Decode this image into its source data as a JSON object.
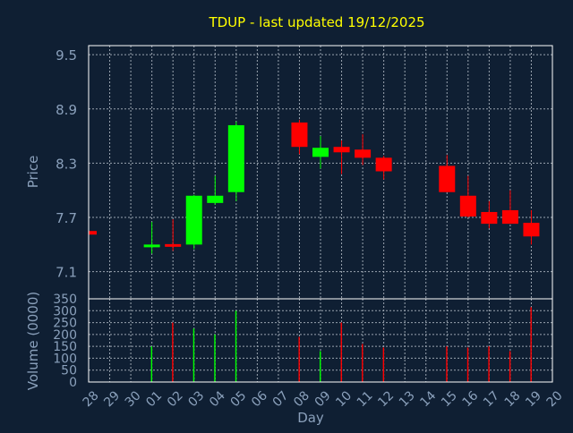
{
  "title": "TDUP - last updated 19/12/2025",
  "colors": {
    "background": "#0f1f33",
    "plot_border": "#ffffff",
    "grid": "#9aa4b0",
    "title": "#ffff00",
    "axis_text": "#8aa0bb",
    "up": "#00ff00",
    "down": "#ff0000"
  },
  "chart_data": [
    {
      "type": "candlestick",
      "ylabel": "Price",
      "ylim": [
        6.8,
        9.6
      ],
      "yticks": [
        7.1,
        7.7,
        8.3,
        8.9,
        9.5
      ],
      "grid": true,
      "candles": [
        {
          "day": "28",
          "open": 7.55,
          "high": 7.56,
          "low": 7.51,
          "close": 7.51
        },
        {
          "day": "01",
          "open": 7.37,
          "high": 7.65,
          "low": 7.3,
          "close": 7.4
        },
        {
          "day": "02",
          "open": 7.4,
          "high": 7.68,
          "low": 7.33,
          "close": 7.38
        },
        {
          "day": "03",
          "open": 7.4,
          "high": 7.95,
          "low": 7.35,
          "close": 7.94
        },
        {
          "day": "04",
          "open": 7.86,
          "high": 8.16,
          "low": 7.84,
          "close": 7.94
        },
        {
          "day": "05",
          "open": 7.98,
          "high": 8.76,
          "low": 7.88,
          "close": 8.72
        },
        {
          "day": "08",
          "open": 8.75,
          "high": 8.78,
          "low": 8.4,
          "close": 8.48
        },
        {
          "day": "09",
          "open": 8.37,
          "high": 8.6,
          "low": 8.24,
          "close": 8.47
        },
        {
          "day": "10",
          "open": 8.48,
          "high": 8.55,
          "low": 8.18,
          "close": 8.42
        },
        {
          "day": "11",
          "open": 8.45,
          "high": 8.62,
          "low": 8.28,
          "close": 8.36
        },
        {
          "day": "12",
          "open": 8.36,
          "high": 8.38,
          "low": 8.12,
          "close": 8.21
        },
        {
          "day": "15",
          "open": 8.27,
          "high": 8.39,
          "low": 7.98,
          "close": 7.98
        },
        {
          "day": "16",
          "open": 7.94,
          "high": 8.16,
          "low": 7.7,
          "close": 7.71
        },
        {
          "day": "17",
          "open": 7.76,
          "high": 7.88,
          "low": 7.58,
          "close": 7.63
        },
        {
          "day": "18",
          "open": 7.78,
          "high": 8.0,
          "low": 7.63,
          "close": 7.63
        },
        {
          "day": "19",
          "open": 7.64,
          "high": 7.78,
          "low": 7.4,
          "close": 7.49
        }
      ]
    },
    {
      "type": "bar",
      "xlabel": "Day",
      "ylabel": "Volume (0000)",
      "ylim": [
        0,
        350
      ],
      "yticks": [
        0,
        50,
        100,
        150,
        200,
        250,
        300,
        350
      ],
      "xticks": [
        "28",
        "29",
        "30",
        "01",
        "02",
        "03",
        "04",
        "05",
        "06",
        "07",
        "08",
        "09",
        "10",
        "11",
        "12",
        "13",
        "14",
        "15",
        "16",
        "17",
        "18",
        "19",
        "20"
      ],
      "grid": true,
      "bars": [
        {
          "day": "28",
          "value": 0,
          "direction": "down"
        },
        {
          "day": "01",
          "value": 150,
          "direction": "up"
        },
        {
          "day": "02",
          "value": 250,
          "direction": "down"
        },
        {
          "day": "03",
          "value": 225,
          "direction": "up"
        },
        {
          "day": "04",
          "value": 200,
          "direction": "up"
        },
        {
          "day": "05",
          "value": 300,
          "direction": "up"
        },
        {
          "day": "08",
          "value": 190,
          "direction": "down"
        },
        {
          "day": "09",
          "value": 130,
          "direction": "up"
        },
        {
          "day": "10",
          "value": 250,
          "direction": "down"
        },
        {
          "day": "11",
          "value": 160,
          "direction": "down"
        },
        {
          "day": "12",
          "value": 145,
          "direction": "down"
        },
        {
          "day": "15",
          "value": 150,
          "direction": "down"
        },
        {
          "day": "16",
          "value": 145,
          "direction": "down"
        },
        {
          "day": "17",
          "value": 150,
          "direction": "down"
        },
        {
          "day": "18",
          "value": 130,
          "direction": "down"
        },
        {
          "day": "19",
          "value": 315,
          "direction": "down"
        }
      ]
    }
  ]
}
